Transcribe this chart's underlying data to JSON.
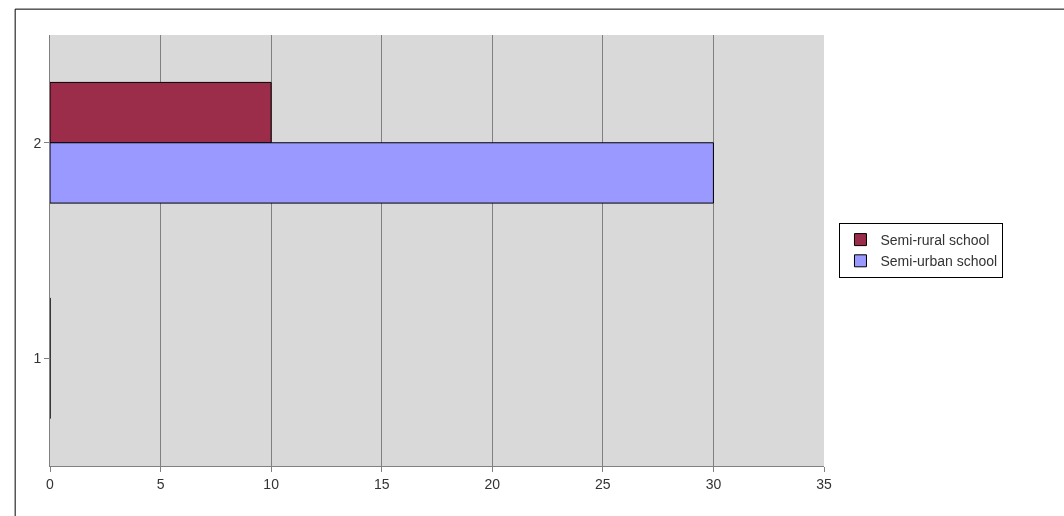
{
  "chart_data": {
    "type": "bar",
    "orientation": "horizontal",
    "categories": [
      "2",
      "1"
    ],
    "series": [
      {
        "name": "Semi-rural school",
        "color": "#9b2d4a",
        "values": [
          10,
          0
        ]
      },
      {
        "name": "Semi-urban school",
        "color": "#9999ff",
        "values": [
          30,
          0
        ]
      }
    ],
    "xlim": [
      0,
      35
    ],
    "xticks": [
      0,
      5,
      10,
      15,
      20,
      25,
      30,
      35
    ],
    "grid": "x",
    "legend": "right"
  }
}
